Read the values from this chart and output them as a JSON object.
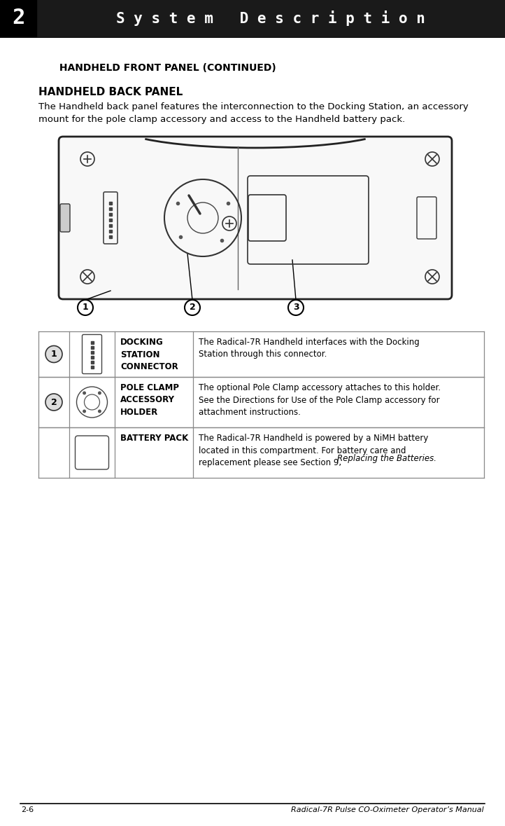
{
  "bg_color": "#ffffff",
  "header_bg": "#1a1a1a",
  "header_text": "S y s t e m   D e s c r i p t i o n",
  "header_number": "2",
  "header_text_color": "#ffffff",
  "footer_left": "2-6",
  "footer_right": "Radical-7R Pulse CO-Oximeter Operator’s Manual",
  "section_title": " HANDHELD FRONT PANEL (CONTINUED)",
  "subsection_title": "HANDHELD BACK PANEL",
  "body_text_line1": "The Handheld back panel features the interconnection to the Docking Station, an accessory",
  "body_text_line2": "mount for the pole clamp accessory and access to the Handheld battery pack.",
  "table_rows": [
    {
      "number": "1",
      "icon_type": "connector",
      "bold_text": "DOCKING\nSTATION\nCONNECTOR",
      "description": "The Radical-7R Handheld interfaces with the Docking\nStation through this connector."
    },
    {
      "number": "2",
      "icon_type": "clamp",
      "bold_text": "POLE CLAMP\nACCESSORY\nHOLDER",
      "description": "The optional Pole Clamp accessory attaches to this holder.\nSee the Directions for Use of the Pole Clamp accessory for\nattachment instructions."
    },
    {
      "number": "",
      "icon_type": "battery",
      "bold_text": "BATTERY PACK",
      "description_main": "The Radical-7R Handheld is powered by a NiMH battery\nlocated in this compartment. For battery care and\nreplacement please see Section 9, ",
      "description_italic": "Replacing the Batteries."
    }
  ]
}
